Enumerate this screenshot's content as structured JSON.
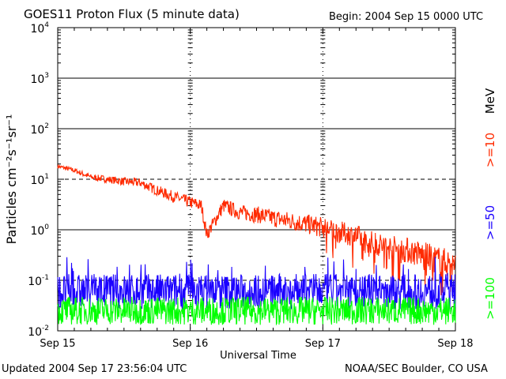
{
  "header": {
    "title": "GOES11 Proton Flux (5 minute data)",
    "begin": "Begin: 2004 Sep 15 0000 UTC"
  },
  "footer": {
    "updated": "Updated 2004 Sep 17 23:56:04 UTC",
    "credit": "NOAA/SEC Boulder, CO USA"
  },
  "chart_data": {
    "type": "line",
    "title": "GOES11 Proton Flux (5 minute data)",
    "xlabel": "Universal Time",
    "ylabel": "Particles cm⁻²s⁻¹sr⁻¹",
    "yscale": "log",
    "ylim": [
      0.01,
      10000
    ],
    "xlim_days": [
      0,
      3
    ],
    "x_tick_labels": [
      "Sep 15",
      "Sep 16",
      "Sep 17",
      "Sep 18"
    ],
    "y_tick_labels": [
      {
        "base": "10",
        "exp": "-2"
      },
      {
        "base": "10",
        "exp": "-1"
      },
      {
        "base": "10",
        "exp": "0"
      },
      {
        "base": "10",
        "exp": "1"
      },
      {
        "base": "10",
        "exp": "2"
      },
      {
        "base": "10",
        "exp": "3"
      },
      {
        "base": "10",
        "exp": "4"
      }
    ],
    "unit_label": "MeV",
    "grid": "horizontal solid at decades, dashed at 10 and 0.1; dashed vertical at day boundaries",
    "series": [
      {
        "name": ">=10",
        "color": "#ff2a00",
        "x": [
          "Sep 15 00:00",
          "Sep 15 03:00",
          "Sep 15 06:00",
          "Sep 15 09:00",
          "Sep 15 12:00",
          "Sep 15 15:00",
          "Sep 15 18:00",
          "Sep 15 21:00",
          "Sep 16 00:00",
          "Sep 16 02:00",
          "Sep 16 03:00",
          "Sep 16 06:00",
          "Sep 16 09:00",
          "Sep 16 12:00",
          "Sep 16 15:00",
          "Sep 16 18:00",
          "Sep 16 21:00",
          "Sep 17 00:00",
          "Sep 17 03:00",
          "Sep 17 06:00",
          "Sep 17 09:00",
          "Sep 17 12:00",
          "Sep 17 15:00",
          "Sep 17 18:00",
          "Sep 17 21:00",
          "Sep 18 00:00"
        ],
        "values": [
          18,
          15,
          11,
          10,
          9,
          8.5,
          6,
          4.5,
          3.5,
          3,
          0.8,
          3,
          2.2,
          2,
          1.7,
          1.5,
          1.3,
          1.1,
          0.9,
          0.75,
          0.55,
          0.45,
          0.4,
          0.32,
          0.25,
          0.2
        ]
      },
      {
        "name": ">=50",
        "color": "#1a00ff",
        "x": [
          "Sep 15 00:00",
          "Sep 15 12:00",
          "Sep 16 00:00",
          "Sep 16 12:00",
          "Sep 17 00:00",
          "Sep 17 12:00",
          "Sep 18 00:00"
        ],
        "values": [
          0.06,
          0.06,
          0.06,
          0.06,
          0.06,
          0.06,
          0.06
        ]
      },
      {
        "name": ">=100",
        "color": "#00ff00",
        "x": [
          "Sep 15 00:00",
          "Sep 15 12:00",
          "Sep 16 00:00",
          "Sep 16 12:00",
          "Sep 17 00:00",
          "Sep 17 12:00",
          "Sep 18 00:00"
        ],
        "values": [
          0.025,
          0.025,
          0.025,
          0.025,
          0.025,
          0.025,
          0.025
        ]
      }
    ]
  }
}
